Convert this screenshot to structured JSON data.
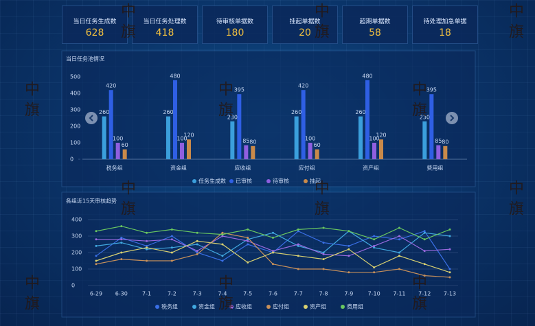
{
  "kpis": [
    {
      "label": "当日任务生成数",
      "value": 628
    },
    {
      "label": "当日任务处理数",
      "value": 418
    },
    {
      "label": "待审核单据数",
      "value": 180
    },
    {
      "label": "挂起单据数",
      "value": 20
    },
    {
      "label": "超期单据数",
      "value": 58
    },
    {
      "label": "待处理加急单据",
      "value": 18
    }
  ],
  "watermark": "中旗",
  "chart_data": [
    {
      "type": "bar",
      "title": "当日任务池情况",
      "categories": [
        "税务组",
        "资金组",
        "应收组",
        "应付组",
        "资产组",
        "费用组"
      ],
      "series": [
        {
          "name": "任务生成数",
          "color": "#3b9fdc",
          "values": [
            260,
            260,
            230,
            260,
            260,
            230
          ]
        },
        {
          "name": "已审核",
          "color": "#2f5fe4",
          "values": [
            420,
            480,
            395,
            420,
            480,
            395
          ]
        },
        {
          "name": "待审核",
          "color": "#8f5fe0",
          "values": [
            100,
            100,
            85,
            100,
            100,
            85
          ]
        },
        {
          "name": "挂起",
          "color": "#c98a4a",
          "values": [
            60,
            120,
            80,
            60,
            120,
            80
          ]
        }
      ],
      "ylim": [
        0,
        500
      ],
      "yticks": [
        0,
        100,
        200,
        300,
        400,
        500
      ],
      "data_labels": true
    },
    {
      "type": "line",
      "title": "各组近15天审核趋势",
      "x": [
        "6-29",
        "6-30",
        "7-1",
        "7-2",
        "7-3",
        "7-4",
        "7-5",
        "7-6",
        "7-7",
        "7-8",
        "7-9",
        "7-10",
        "7-11",
        "7-12",
        "7-13"
      ],
      "series": [
        {
          "name": "税务组",
          "color": "#3a6fe6",
          "values": [
            180,
            290,
            240,
            300,
            200,
            150,
            250,
            200,
            330,
            260,
            240,
            300,
            280,
            330,
            100
          ]
        },
        {
          "name": "资金组",
          "color": "#41a8e0",
          "values": [
            240,
            260,
            220,
            230,
            250,
            180,
            280,
            320,
            240,
            200,
            330,
            230,
            200,
            320,
            300
          ]
        },
        {
          "name": "应收组",
          "color": "#9a6ae0",
          "values": [
            280,
            280,
            270,
            280,
            210,
            300,
            270,
            210,
            250,
            190,
            180,
            240,
            300,
            210,
            220
          ]
        },
        {
          "name": "应付组",
          "color": "#c8905a",
          "values": [
            130,
            160,
            150,
            150,
            190,
            320,
            290,
            130,
            100,
            100,
            80,
            80,
            100,
            60,
            50
          ]
        },
        {
          "name": "资产组",
          "color": "#d8d070",
          "values": [
            150,
            200,
            230,
            200,
            270,
            250,
            140,
            200,
            180,
            160,
            220,
            110,
            180,
            130,
            80
          ]
        },
        {
          "name": "费用组",
          "color": "#6ac860",
          "values": [
            330,
            360,
            320,
            340,
            320,
            310,
            340,
            290,
            340,
            350,
            330,
            280,
            350,
            280,
            340
          ]
        }
      ],
      "ylim": [
        0,
        400
      ],
      "yticks": [
        0,
        100,
        200,
        300,
        400
      ],
      "grid": true
    }
  ]
}
